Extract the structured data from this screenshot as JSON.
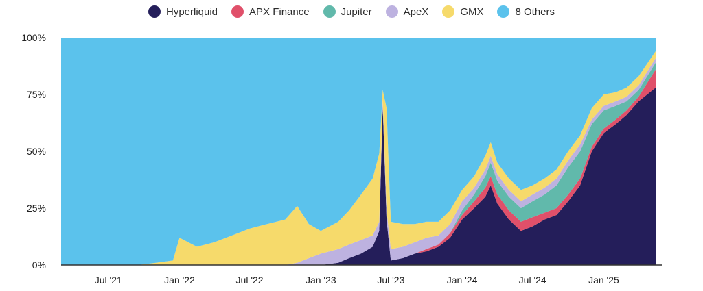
{
  "colors": {
    "background": "#ffffff",
    "axis": "#333333",
    "hyperliquid": "#241E5A",
    "apx": "#E0506A",
    "jupiter": "#61B9AB",
    "apex": "#BDB2E0",
    "gmx": "#F6DA6B",
    "others": "#5BC2EC"
  },
  "legend": [
    {
      "label": "Hyperliquid",
      "color": "#241E5A"
    },
    {
      "label": "APX Finance",
      "color": "#E0506A"
    },
    {
      "label": "Jupiter",
      "color": "#61B9AB"
    },
    {
      "label": "ApeX",
      "color": "#BDB2E0"
    },
    {
      "label": "GMX",
      "color": "#F6DA6B"
    },
    {
      "label": "8 Others",
      "color": "#5BC2EC"
    }
  ],
  "chart_data": {
    "type": "area",
    "stacked": true,
    "normalized": true,
    "title": "",
    "xlabel": "",
    "ylabel": "",
    "ylim": [
      0,
      100
    ],
    "y_ticks": [
      "0%",
      "25%",
      "50%",
      "75%",
      "100%"
    ],
    "y_tick_values": [
      0,
      25,
      50,
      75,
      100
    ],
    "x_ticks": [
      "Jul '21",
      "Jan '22",
      "Jul '22",
      "Jan '23",
      "Jul '23",
      "Jan '24",
      "Jul '24",
      "Jan '25"
    ],
    "x_tick_dates": [
      "2021-07-01",
      "2022-01-01",
      "2022-07-01",
      "2023-01-01",
      "2023-07-01",
      "2024-01-01",
      "2024-07-01",
      "2025-01-01"
    ],
    "x_start": "2021-03-01",
    "x_end": "2025-05-31",
    "x": [
      "2021-03-01",
      "2021-07-01",
      "2021-09-15",
      "2021-11-01",
      "2021-12-15",
      "2022-01-01",
      "2022-02-15",
      "2022-04-01",
      "2022-06-01",
      "2022-07-01",
      "2022-08-15",
      "2022-10-01",
      "2022-11-01",
      "2022-12-01",
      "2023-01-01",
      "2023-02-15",
      "2023-03-15",
      "2023-04-15",
      "2023-05-15",
      "2023-06-01",
      "2023-06-10",
      "2023-06-20",
      "2023-07-01",
      "2023-08-01",
      "2023-09-01",
      "2023-10-01",
      "2023-11-01",
      "2023-12-01",
      "2024-01-01",
      "2024-02-01",
      "2024-03-01",
      "2024-03-15",
      "2024-04-01",
      "2024-05-01",
      "2024-06-01",
      "2024-07-01",
      "2024-08-01",
      "2024-09-01",
      "2024-10-01",
      "2024-11-01",
      "2024-12-01",
      "2025-01-01",
      "2025-02-01",
      "2025-03-01",
      "2025-04-01",
      "2025-05-15"
    ],
    "series": [
      {
        "name": "Hyperliquid",
        "values": [
          0,
          0,
          0,
          0,
          0,
          0,
          0,
          0,
          0,
          0,
          0,
          0,
          0,
          0,
          0,
          1,
          3,
          5,
          8,
          15,
          70,
          20,
          2,
          3,
          5,
          6,
          8,
          12,
          20,
          25,
          30,
          35,
          27,
          20,
          15,
          17,
          20,
          22,
          28,
          35,
          50,
          58,
          62,
          66,
          72,
          78
        ]
      },
      {
        "name": "APX Finance",
        "values": [
          0,
          0,
          0,
          0,
          0,
          0,
          0,
          0,
          0,
          0,
          0,
          0,
          0,
          0,
          0,
          0,
          0,
          0,
          0,
          0,
          0,
          0,
          0,
          0,
          0,
          1,
          1,
          2,
          2,
          3,
          4,
          4,
          4,
          4,
          4,
          4,
          3,
          3,
          3,
          3,
          2,
          2,
          2,
          2,
          2,
          8
        ]
      },
      {
        "name": "Jupiter",
        "values": [
          0,
          0,
          0,
          0,
          0,
          0,
          0,
          0,
          0,
          0,
          0,
          0,
          0,
          0,
          0,
          0,
          0,
          0,
          0,
          0,
          0,
          0,
          0,
          0,
          0,
          0,
          0,
          0,
          2,
          3,
          5,
          6,
          6,
          6,
          6,
          7,
          8,
          10,
          12,
          12,
          10,
          8,
          6,
          4,
          3,
          3
        ]
      },
      {
        "name": "ApeX",
        "values": [
          0,
          0,
          0,
          0,
          0,
          0,
          0,
          0,
          0,
          0,
          0,
          0,
          1,
          3,
          5,
          6,
          6,
          6,
          5,
          4,
          3,
          4,
          5,
          5,
          5,
          5,
          4,
          4,
          4,
          3,
          3,
          3,
          3,
          3,
          3,
          3,
          3,
          3,
          3,
          3,
          2,
          2,
          2,
          2,
          2,
          2
        ]
      },
      {
        "name": "GMX",
        "values": [
          0,
          0,
          0,
          1,
          2,
          12,
          8,
          10,
          14,
          16,
          18,
          20,
          25,
          15,
          10,
          12,
          15,
          20,
          25,
          30,
          4,
          45,
          12,
          10,
          8,
          7,
          6,
          6,
          5,
          5,
          6,
          6,
          5,
          5,
          5,
          4,
          4,
          4,
          4,
          4,
          5,
          5,
          4,
          4,
          4,
          3
        ]
      },
      {
        "name": "8 Others",
        "values": [
          100,
          100,
          100,
          99,
          98,
          88,
          92,
          90,
          86,
          84,
          82,
          80,
          74,
          82,
          85,
          81,
          76,
          69,
          62,
          51,
          23,
          31,
          81,
          82,
          82,
          81,
          81,
          76,
          67,
          61,
          52,
          46,
          55,
          62,
          67,
          65,
          62,
          58,
          50,
          43,
          31,
          25,
          24,
          22,
          17,
          6
        ]
      }
    ]
  }
}
